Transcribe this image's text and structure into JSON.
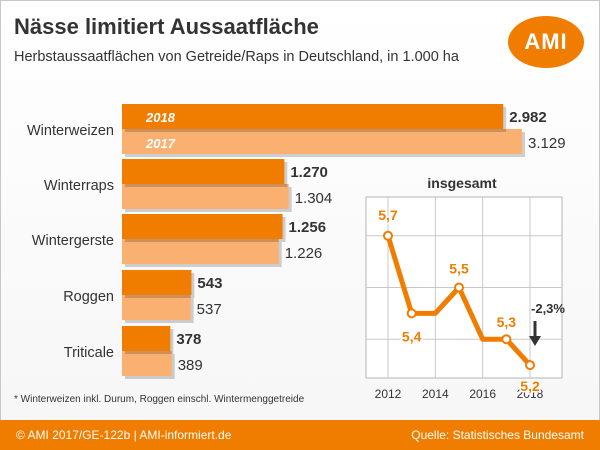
{
  "header": {
    "title": "Nässe limitiert Aussaatfläche",
    "subtitle": "Herbstaussaatflächen von Getreide/Raps in Deutschland, in 1.000 ha",
    "logo_text": "AMI"
  },
  "footnote": "* Winterweizen inkl. Durum, Roggen einschl. Wintermenggetreide",
  "footer": {
    "left": "© AMI 2017/GE-122b | AMI-informiert.de",
    "right": "Quelle: Statistisches Bundesamt"
  },
  "colors": {
    "accent": "#f07d00",
    "light": "#f9b071",
    "text": "#333333"
  },
  "chart_data": [
    {
      "type": "bar",
      "orientation": "horizontal",
      "categories": [
        "Winterweizen",
        "Winterraps",
        "Wintergerste",
        "Roggen",
        "Triticale"
      ],
      "series": [
        {
          "name": "2018",
          "values": [
            2982,
            1270,
            1256,
            543,
            378
          ],
          "labels": [
            "2.982",
            "1.270",
            "1.256",
            "543",
            "378"
          ]
        },
        {
          "name": "2017",
          "values": [
            3129,
            1304,
            1226,
            537,
            389
          ],
          "labels": [
            "3.129",
            "1.304",
            "1.226",
            "537",
            "389"
          ]
        }
      ],
      "xlim": [
        0,
        3129
      ]
    },
    {
      "type": "line",
      "title": "insgesamt",
      "x": [
        2012,
        2013,
        2014,
        2015,
        2016,
        2017,
        2018
      ],
      "y": [
        5.7,
        5.4,
        5.4,
        5.5,
        5.3,
        5.3,
        5.2
      ],
      "point_labels": [
        {
          "x": 2012,
          "y": 5.7,
          "text": "5,7"
        },
        {
          "x": 2013,
          "y": 5.4,
          "text": "5,4"
        },
        {
          "x": 2015,
          "y": 5.5,
          "text": "5,5"
        },
        {
          "x": 2017,
          "y": 5.3,
          "text": "5,3"
        },
        {
          "x": 2018,
          "y": 5.2,
          "text": "5,2"
        }
      ],
      "xticks": [
        "2012",
        "2014",
        "2016",
        "2018"
      ],
      "xlim": [
        2012,
        2018
      ],
      "ylim": [
        5.15,
        5.85
      ],
      "grid": true,
      "annotation": "-2,3%"
    }
  ]
}
